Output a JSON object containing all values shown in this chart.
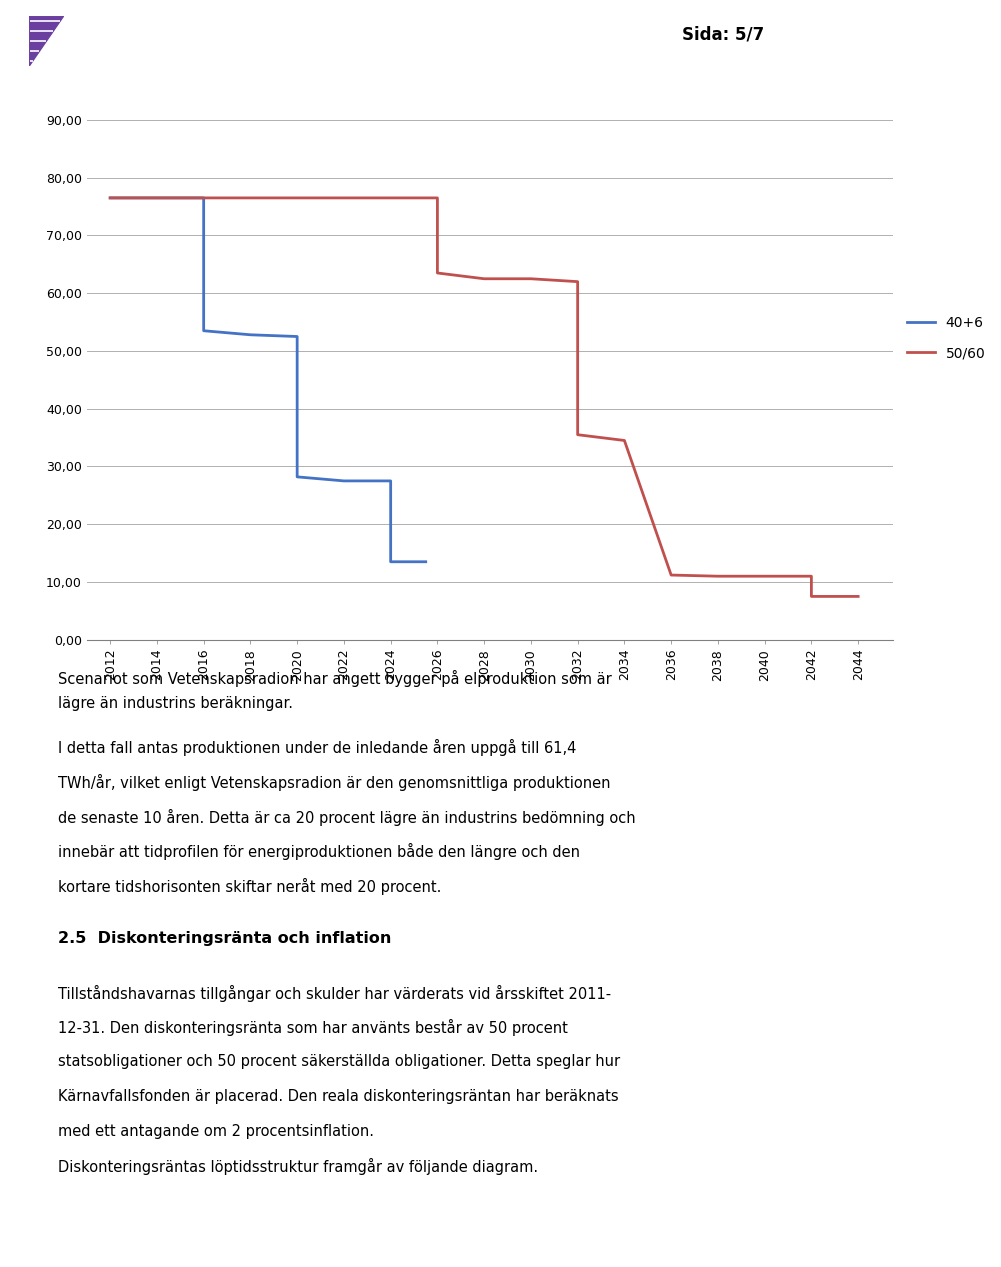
{
  "blue_x": [
    2012,
    2016,
    2016,
    2018,
    2020,
    2020,
    2022,
    2024,
    2024,
    2025.5
  ],
  "blue_y": [
    76.5,
    76.5,
    53.5,
    52.8,
    52.5,
    28.2,
    27.5,
    27.5,
    13.5,
    13.5
  ],
  "red_x": [
    2012,
    2026,
    2026,
    2027,
    2028,
    2030,
    2032,
    2032,
    2034,
    2034,
    2036,
    2036,
    2038,
    2040,
    2042,
    2042,
    2044
  ],
  "red_y": [
    76.5,
    76.5,
    63.5,
    63.0,
    62.5,
    62.5,
    62.0,
    35.5,
    34.5,
    34.5,
    11.2,
    11.2,
    11.0,
    11.0,
    11.0,
    7.5,
    7.5
  ],
  "blue_color": "#4472C4",
  "red_color": "#C0504D",
  "legend_40p6": "40+6",
  "legend_50_60": "50/60",
  "yticks": [
    0.0,
    10.0,
    20.0,
    30.0,
    40.0,
    50.0,
    60.0,
    70.0,
    80.0,
    90.0
  ],
  "xticks": [
    2012,
    2014,
    2016,
    2018,
    2020,
    2022,
    2024,
    2026,
    2028,
    2030,
    2032,
    2034,
    2036,
    2038,
    2040,
    2042,
    2044
  ],
  "ylim": [
    0,
    95
  ],
  "xlim": [
    2011,
    2045.5
  ],
  "header_text": "Sida: 5/7",
  "background_color": "#ffffff",
  "grid_color": "#b0b0b0",
  "line_width": 2.0,
  "logo_color": "#6B3FA0",
  "text1": "Scenariot som Vetenskapsradion har angett bygger på elproduktion som är lägre än industrins beräkningar.",
  "text2": "I detta fall antas produktionen under de inledande åren uppgå till 61,4 TWh/år, vilket enligt Vetenskapsradion är den genomsnittliga produktionen de senaste 10 åren. Detta är ca 20 procent lägre än industrins bedömning och innebär att tidprofilen för energiproduktionen både den längre och den kortare tidshorisonten skiftar neråt med 20 procent.",
  "section_header": "2.5  Diskonteringsränta och inflation",
  "text3": "Tillståndshavarnas tillgångar och skulder har värderats vid årsskiftet 2011-12-31. Den diskonteringsрänta som har använts består av 50 procent statsobligationer och 50 procent säkerställda obligationer. Detta speglar hur Kärnavfallsfonden är placerad. Den reala diskonteringsрäntan har beräknats med ett antagande om 2 procentsinflation.",
  "text4": "Diskonteringsрäntas löptidsstruktur framgår av följande diagram."
}
